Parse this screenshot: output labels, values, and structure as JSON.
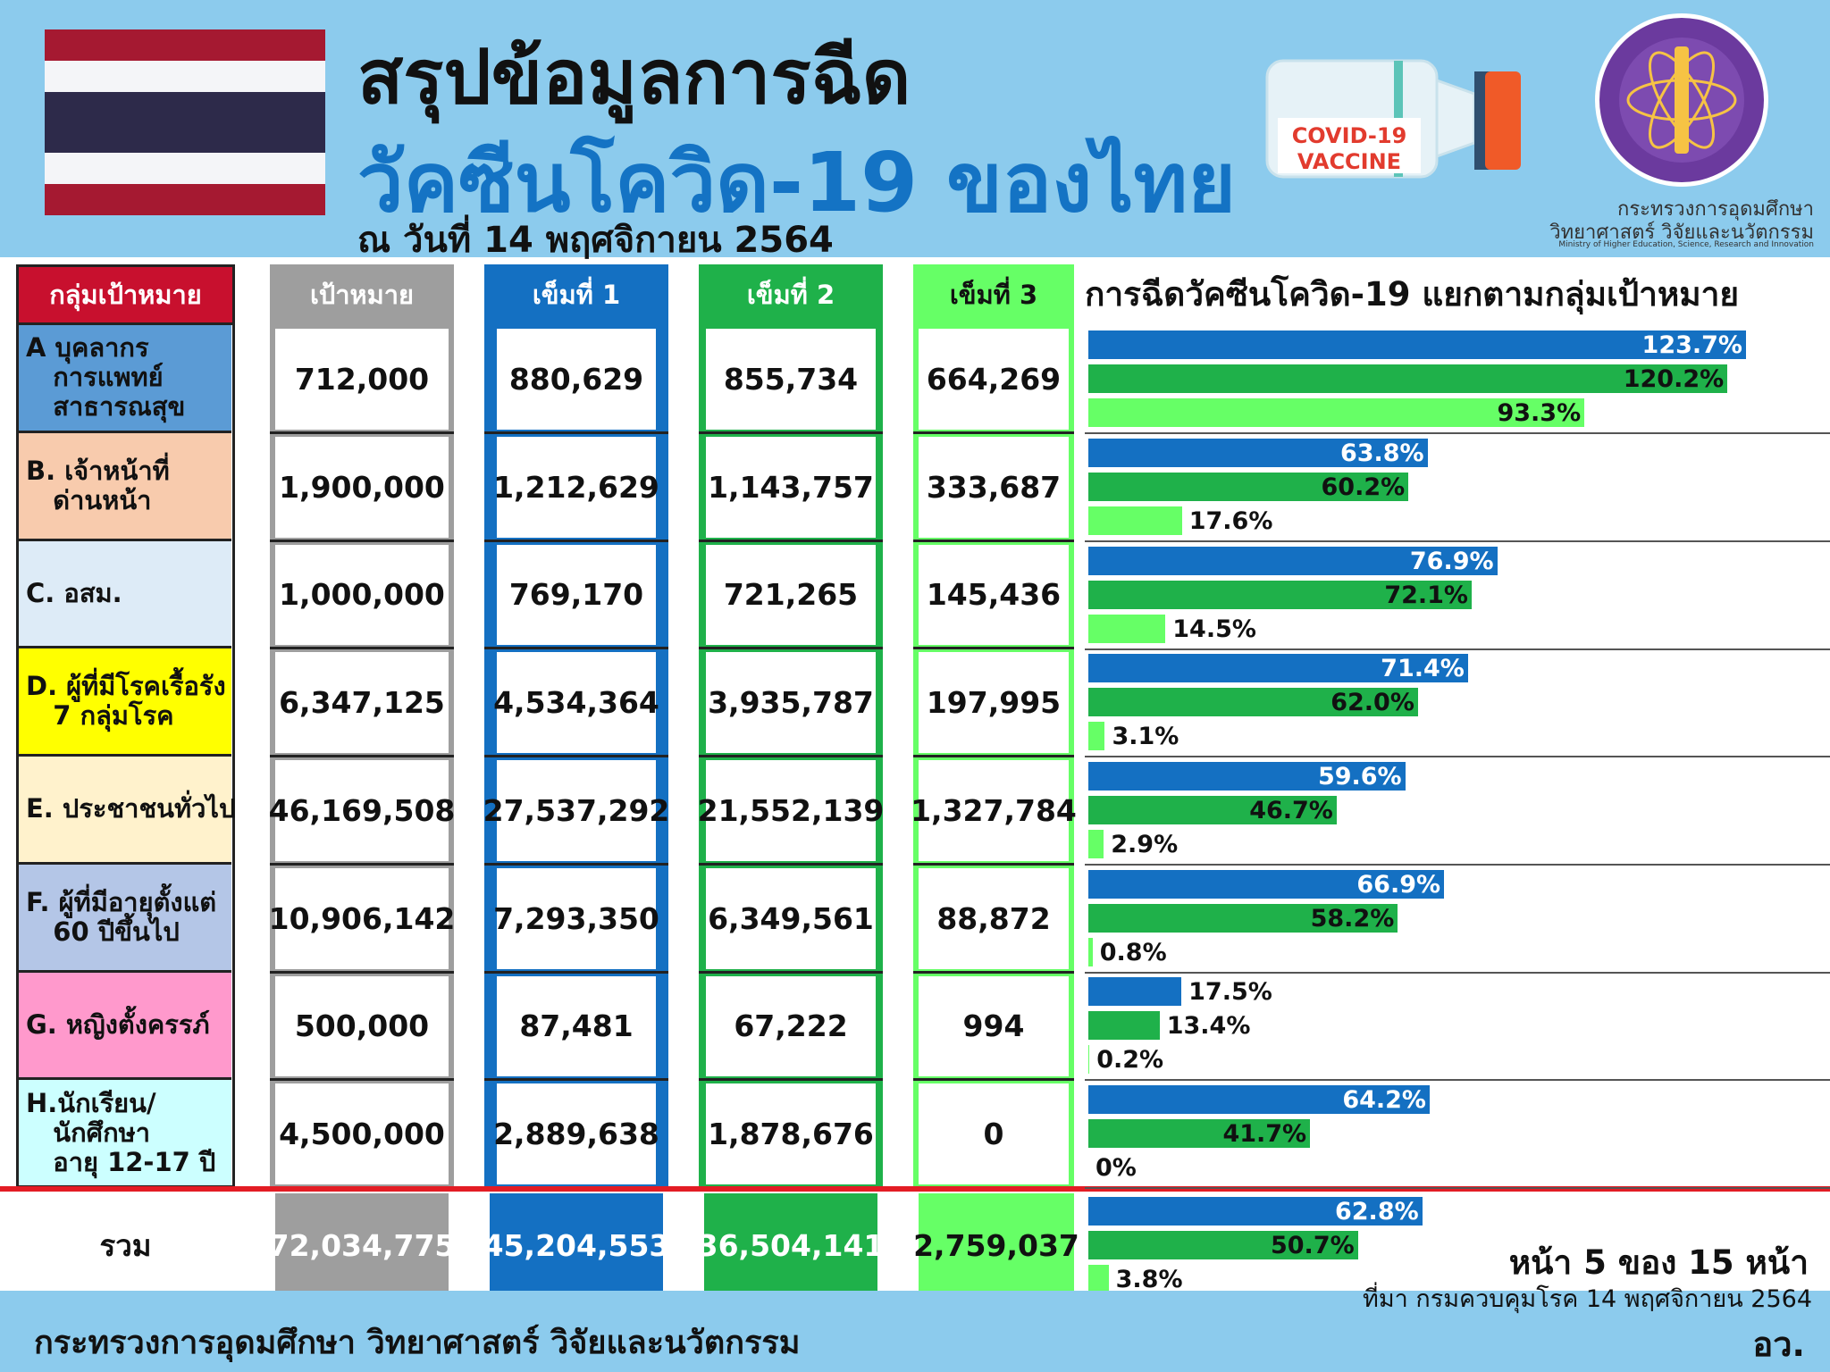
{
  "header": {
    "title_line1": "สรุปข้อมูลการฉีด",
    "title_line2": "วัคซีนโควิด-19 ของไทย",
    "date_line": "ณ วันที่ 14 พฤศจิกายน 2564",
    "vaccine_label_line1": "COVID-19",
    "vaccine_label_line2": "VACCINE",
    "ministry_name_th": "กระทรวงการอุดมศึกษา",
    "ministry_name_th2": "วิทยาศาสตร์ วิจัยและนวัตกรรม",
    "ministry_name_en": "Ministry of Higher Education, Science, Research and Innovation"
  },
  "colors": {
    "header_bg": "#8ccbed",
    "dose1": "#1470c2",
    "dose2": "#1fb14a",
    "dose3": "#66ff66",
    "target": "#9e9e9e",
    "group_header": "#c8102e",
    "divider": "#e31c24"
  },
  "table": {
    "headers": {
      "group": "กลุ่มเป้าหมาย",
      "target": "เป้าหมาย",
      "dose1": "เข็มที่ 1",
      "dose2": "เข็มที่ 2",
      "dose3": "เข็มที่ 3"
    },
    "rows": [
      {
        "label": "A บุคลากร\n   การแพทย์\n   สาธารณสุข",
        "bg": "#5b9bd5",
        "target": "712,000",
        "dose1": "880,629",
        "dose2": "855,734",
        "dose3": "664,269"
      },
      {
        "label": "B. เจ้าหน้าที่\n   ด่านหน้า",
        "bg": "#f8cbad",
        "target": "1,900,000",
        "dose1": "1,212,629",
        "dose2": "1,143,757",
        "dose3": "333,687"
      },
      {
        "label": "C. อสม.",
        "bg": "#ddebf7",
        "target": "1,000,000",
        "dose1": "769,170",
        "dose2": "721,265",
        "dose3": "145,436"
      },
      {
        "label": "D. ผู้ที่มีโรคเรื้อรัง\n   7 กลุ่มโรค",
        "bg": "#ffff00",
        "target": "6,347,125",
        "dose1": "4,534,364",
        "dose2": "3,935,787",
        "dose3": "197,995"
      },
      {
        "label": "E. ประชาชนทั่วไป",
        "bg": "#fff2cc",
        "target": "46,169,508",
        "dose1": "27,537,292",
        "dose2": "21,552,139",
        "dose3": "1,327,784"
      },
      {
        "label": "F. ผู้ที่มีอายุตั้งแต่\n   60 ปีขึ้นไป",
        "bg": "#b4c6e7",
        "target": "10,906,142",
        "dose1": "7,293,350",
        "dose2": "6,349,561",
        "dose3": "88,872"
      },
      {
        "label": "G. หญิงตั้งครรภ์",
        "bg": "#ff99cc",
        "target": "500,000",
        "dose1": "87,481",
        "dose2": "67,222",
        "dose3": "994"
      },
      {
        "label": "H.นักเรียน/\n   นักศึกษา\n   อายุ 12-17 ปี",
        "bg": "#ccffff",
        "target": "4,500,000",
        "dose1": "2,889,638",
        "dose2": "1,878,676",
        "dose3": "0"
      }
    ],
    "total": {
      "label": "รวม",
      "target": "72,034,775",
      "dose1": "45,204,553",
      "dose2": "36,504,141",
      "dose3": "2,759,037"
    }
  },
  "chart_data": {
    "type": "bar",
    "orientation": "horizontal",
    "title": "การฉีดวัคซีนโควิด-19 แยกตามกลุ่มเป้าหมาย",
    "categories": [
      "A",
      "B.",
      "C.",
      "D.",
      "E.",
      "F.",
      "G.",
      "H.",
      "รวม"
    ],
    "series": [
      {
        "values": [
          123.7,
          63.8,
          76.9,
          71.4,
          59.6,
          66.9,
          17.5,
          64.2,
          62.8
        ],
        "labels": [
          "123.7%",
          "63.8%",
          "76.9%",
          "71.4%",
          "59.6%",
          "66.9%",
          "17.5%",
          "64.2%",
          "62.8%"
        ]
      },
      {
        "values": [
          120.2,
          60.2,
          72.1,
          62.0,
          46.7,
          58.2,
          13.4,
          41.7,
          50.7
        ],
        "labels": [
          "120.2%",
          "60.2%",
          "72.1%",
          "62.0%",
          "46.7%",
          "58.2%",
          "13.4%",
          "41.7%",
          "50.7%"
        ]
      },
      {
        "values": [
          93.3,
          17.6,
          14.5,
          3.1,
          2.9,
          0.8,
          0.2,
          0,
          3.8
        ],
        "labels": [
          "93.3%",
          "17.6%",
          "14.5%",
          "3.1%",
          "2.9%",
          "0.8%",
          "0.2%",
          "0%",
          "3.8%"
        ]
      }
    ],
    "xlim": [
      0,
      130
    ],
    "grid": false,
    "legend": "none"
  },
  "footer": {
    "page_info": "หน้า 5 ของ 15 หน้า",
    "source": "ที่มา กรมควบคุมโรค 14 พฤศจิกายน 2564",
    "ministry": "กระทรวงการอุดมศึกษา วิทยาศาสตร์ วิจัยและนวัตกรรม",
    "abbr": "อว."
  }
}
